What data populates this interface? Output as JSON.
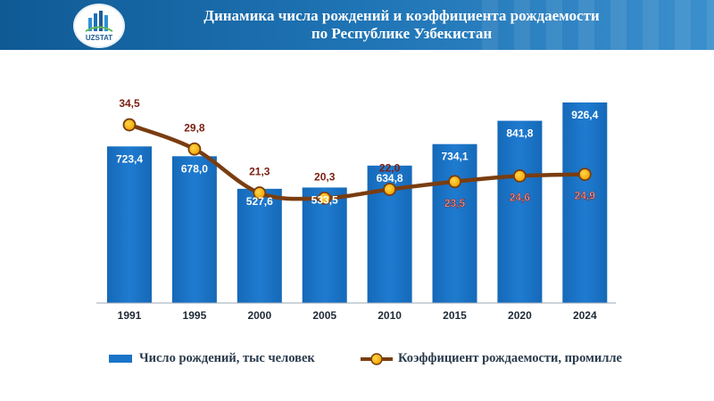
{
  "header": {
    "logo_text": "UZSTAT",
    "title_line1": "Динамика числа рождений и коэффициента рождаемости",
    "title_line2": "по Республике Узбекистан"
  },
  "chart_data": {
    "type": "bar+line",
    "categories": [
      "1991",
      "1995",
      "2000",
      "2005",
      "2010",
      "2015",
      "2020",
      "2024"
    ],
    "series": [
      {
        "name": "Число рождений, тыс человек",
        "type": "bar",
        "color": "#1a74c8",
        "values": [
          723.4,
          678.0,
          527.6,
          533.5,
          634.8,
          734.1,
          841.8,
          926.4
        ],
        "labels": [
          "723,4",
          "678,0",
          "527,6",
          "533,5",
          "634,8",
          "734,1",
          "841,8",
          "926,4"
        ]
      },
      {
        "name": "Коэффициент рождаемости, промилле",
        "type": "line",
        "color": "#7a3d10",
        "values": [
          34.5,
          29.8,
          21.3,
          20.3,
          22.0,
          23.5,
          24.6,
          24.9
        ],
        "labels": [
          "34,5",
          "29,8",
          "21,3",
          "20,3",
          "22,0",
          "23,5",
          "24,6",
          "24,9"
        ]
      }
    ],
    "legend_position": "bottom",
    "grid": false
  }
}
